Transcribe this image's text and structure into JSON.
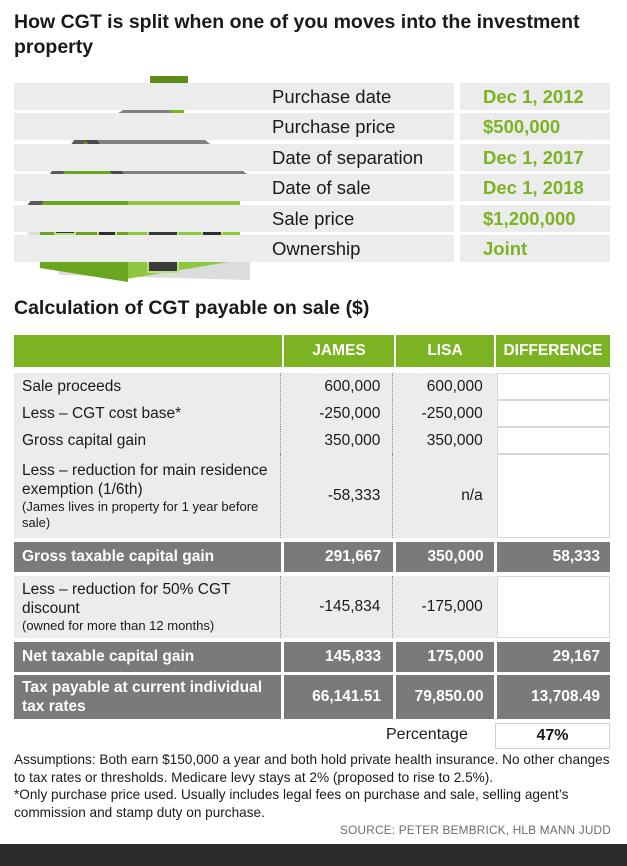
{
  "title": "How CGT is split when one of you moves into the investment property",
  "facts": [
    {
      "label": "Purchase date",
      "value": "Dec 1, 2012"
    },
    {
      "label": "Purchase price",
      "value": "$500,000"
    },
    {
      "label": "Date of separation",
      "value": "Dec 1, 2017"
    },
    {
      "label": "Date of sale",
      "value": "Dec 1, 2018"
    },
    {
      "label": "Sale price",
      "value": "$1,200,000"
    },
    {
      "label": "Ownership",
      "value": "Joint"
    }
  ],
  "subtitle": "Calculation of CGT payable on sale ($)",
  "table": {
    "headers": {
      "james": "JAMES",
      "lisa": "LISA",
      "difference": "DIFFERENCE"
    },
    "rows": [
      {
        "label": "Sale proceeds",
        "note": "",
        "james": "600,000",
        "lisa": "600,000",
        "difference": ""
      },
      {
        "label": "Less – CGT cost base*",
        "note": "",
        "james": "-250,000",
        "lisa": "-250,000",
        "difference": ""
      },
      {
        "label": "Gross capital gain",
        "note": "",
        "james": "350,000",
        "lisa": "350,000",
        "difference": ""
      },
      {
        "label": "Less – reduction for main residence exemption (1/6th)",
        "note": "(James lives in property for 1 year before sale)",
        "james": "-58,333",
        "lisa": "n/a",
        "difference": ""
      },
      {
        "label": "Gross taxable capital gain",
        "note": "",
        "james": "291,667",
        "lisa": "350,000",
        "difference": "58,333"
      },
      {
        "label": "Less – reduction for 50% CGT discount",
        "note": "(owned for more than 12 months)",
        "james": "-145,834",
        "lisa": "-175,000",
        "difference": ""
      },
      {
        "label": "Net taxable capital gain",
        "note": "",
        "james": "145,833",
        "lisa": "175,000",
        "difference": "29,167"
      },
      {
        "label": "Tax payable at current individual tax rates",
        "note": "",
        "james": "66,141.51",
        "lisa": "79,850.00",
        "difference": "13,708.49"
      }
    ],
    "percentage_label": "Percentage",
    "percentage_value": "47%"
  },
  "assumptions": "Assumptions: Both earn $150,000 a year and both hold private health insurance. No other changes to tax rates or thresholds. Medicare levy stays at 2% (proposed to rise to 2.5%).",
  "footnote": "*Only purchase price used. Usually includes legal fees on purchase and sale, selling agent’s commission and stamp duty on purchase.",
  "source": "SOURCE: PETER BEMBRICK, HLB MANN JUDD",
  "colors": {
    "accent": "#7cb322",
    "dark_row": "#7a7a7a",
    "light_row": "#ececec"
  }
}
